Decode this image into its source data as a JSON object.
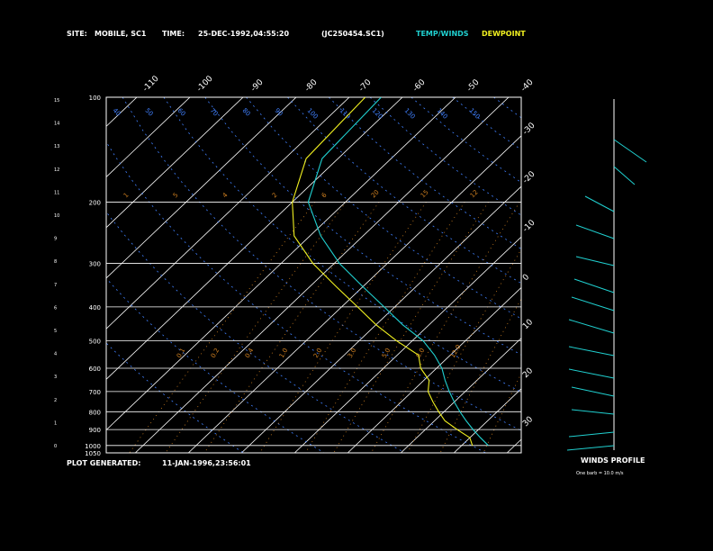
{
  "header": {
    "site_label": "SITE:",
    "site_value": "MOBILE, SC1",
    "time_label": "TIME:",
    "time_value": "25-DEC-1992,04:55:20",
    "file_id": "(JC250454.SC1)",
    "temp_winds_label": "TEMP/WINDS",
    "dewpoint_label": "DEWPOINT"
  },
  "footer": {
    "plot_generated_label": "PLOT GENERATED:",
    "plot_generated_value": "11-JAN-1996,23:56:01"
  },
  "winds": {
    "title": "WINDS PROFILE",
    "note": "One barb = 10.0 m/s"
  },
  "colors": {
    "temp": "#20d0d0",
    "dewpoint": "#f0f020",
    "grid": "#ffffff",
    "mixing_ratio": "#d08020",
    "adiabat": "#4080ff"
  },
  "chart_data": {
    "type": "line",
    "title": "",
    "xlabel": "",
    "ylabel": "",
    "pressure_ticks": [
      "100",
      "200",
      "300",
      "400",
      "500",
      "600",
      "700",
      "800",
      "900",
      "1000",
      "1050"
    ],
    "km_ticks": [
      "0",
      "1",
      "2",
      "3",
      "4",
      "5",
      "6",
      "7",
      "8",
      "9",
      "10",
      "11",
      "12",
      "13",
      "14",
      "15"
    ],
    "top_temp_ticks": [
      "-110",
      "-100",
      "-90",
      "-80",
      "-70",
      "-60",
      "-50",
      "-40"
    ],
    "right_temp_ticks": [
      "-30",
      "-20",
      "-10",
      "0",
      "10",
      "20",
      "30"
    ],
    "mixing_ratio_labels": [
      "1",
      "5",
      "4",
      "2",
      "6",
      "20",
      "15",
      "12"
    ],
    "mixing_ratio_labels_2": [
      "0.1",
      "0.2",
      "0.4",
      "1.0",
      "2.0",
      "3.0",
      "5.0",
      "8.0",
      "12.0"
    ],
    "adiabat_labels": [
      "40",
      "50",
      "60",
      "70",
      "80",
      "90",
      "100",
      "110",
      "120",
      "130",
      "140",
      "150"
    ],
    "series": [
      {
        "name": "TEMP/WINDS",
        "points": [
          [
            100,
            -64
          ],
          [
            150,
            -63
          ],
          [
            200,
            -57
          ],
          [
            250,
            -48
          ],
          [
            300,
            -39
          ],
          [
            350,
            -30
          ],
          [
            400,
            -22
          ],
          [
            450,
            -15
          ],
          [
            500,
            -8
          ],
          [
            550,
            -3
          ],
          [
            600,
            1
          ],
          [
            650,
            4
          ],
          [
            700,
            7
          ],
          [
            750,
            10
          ],
          [
            800,
            13
          ],
          [
            850,
            16
          ],
          [
            900,
            19
          ],
          [
            950,
            22
          ],
          [
            1000,
            25
          ]
        ]
      },
      {
        "name": "DEWPOINT",
        "points": [
          [
            100,
            -67
          ],
          [
            150,
            -66
          ],
          [
            200,
            -60
          ],
          [
            250,
            -53
          ],
          [
            300,
            -44
          ],
          [
            350,
            -35
          ],
          [
            400,
            -27
          ],
          [
            450,
            -20
          ],
          [
            500,
            -13
          ],
          [
            550,
            -6
          ],
          [
            600,
            -3
          ],
          [
            650,
            1
          ],
          [
            700,
            3
          ],
          [
            750,
            6
          ],
          [
            800,
            9
          ],
          [
            850,
            12
          ],
          [
            900,
            16
          ],
          [
            950,
            20
          ],
          [
            1000,
            22
          ]
        ]
      }
    ]
  }
}
